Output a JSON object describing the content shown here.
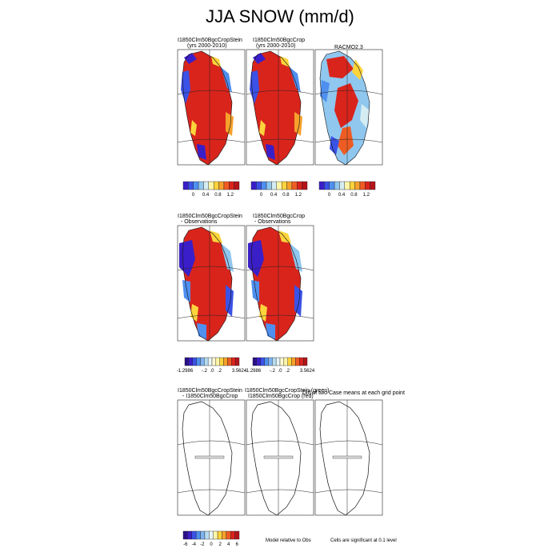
{
  "title": "JJA SNOW (mm/d)",
  "row1": {
    "panels": [
      {
        "line1": "I1850Clm50BgcCropStein",
        "line2": "(yrs 2000-2010)"
      },
      {
        "line1": "I1850Clm50BgcCrop",
        "line2": "(yrs 2000-2010)"
      },
      {
        "line1": "RACMO2.3",
        "line2": ""
      }
    ],
    "colorbar_ticks": [
      "0",
      "0.4",
      "0.8",
      "1.2"
    ],
    "colorbar_colors": [
      "#3a1fc8",
      "#3b52e6",
      "#4f8fef",
      "#8fc7ef",
      "#d4ecf2",
      "#fff6a8",
      "#fdd43c",
      "#f7a12c",
      "#ef5c23",
      "#d9241c",
      "#b3141a"
    ]
  },
  "row2": {
    "panels": [
      {
        "line1": "I1850Clm50BgcCropStein",
        "line2": "- Observations"
      },
      {
        "line1": "I1850Clm50BgcCrop",
        "line2": "- Observations"
      }
    ],
    "colorbar_ticks": [
      "-1.2986",
      "-.2",
      ".0",
      ".2",
      "3.5624"
    ],
    "colorbar_colors": [
      "#2a0f8a",
      "#3a1fc8",
      "#3b52e6",
      "#4f8fef",
      "#7fb3ef",
      "#b6dcf2",
      "#e8f5f7",
      "#fffad0",
      "#fff6a8",
      "#fdd43c",
      "#f7a12c",
      "#ef5c23",
      "#d9241c",
      "#b3141a"
    ]
  },
  "row3": {
    "panels": [
      {
        "line1": "I1850Clm50BgcCropStein",
        "line2": "- I1850Clm50BgcCrop"
      },
      {
        "line1": "I1850Clm50BgcCropStein (green)",
        "line2": "I1850Clm50BgcCrop (red)"
      },
      {
        "line1": "Diff of two Case means at each grid point",
        "line2": ""
      }
    ],
    "colorbar_ticks": [
      "-6",
      "-4",
      "-2",
      "0",
      "2",
      "4",
      "6"
    ],
    "colorbar_colors": [
      "#2a0f8a",
      "#3a1fc8",
      "#3b52e6",
      "#4f8fef",
      "#7fb3ef",
      "#b6dcf2",
      "#e8f5f7",
      "#fff6a8",
      "#fdd43c",
      "#f7a12c",
      "#ef5c23",
      "#d9241c",
      "#b3141a"
    ],
    "note_model": "Model relative to Obs",
    "note_cells": "Cells are significant at 0.1 level"
  }
}
